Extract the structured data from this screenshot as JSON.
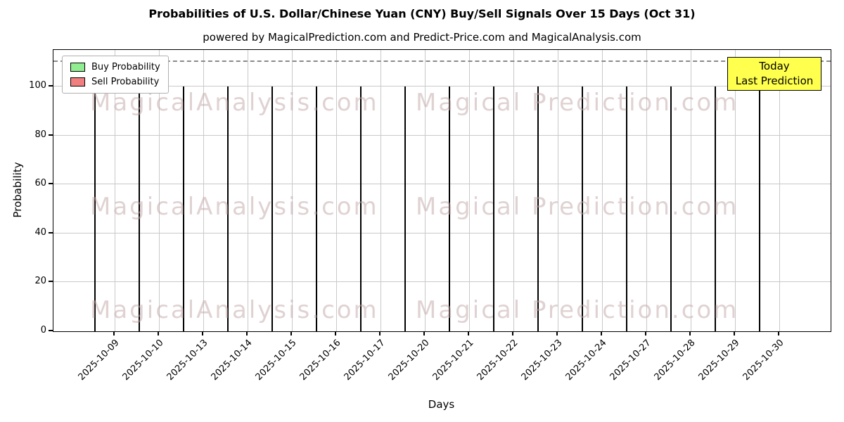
{
  "chart_data": {
    "type": "bar",
    "title": "Probabilities of U.S. Dollar/Chinese Yuan (CNY) Buy/Sell Signals Over 15 Days (Oct 31)",
    "subtitle": "powered by MagicalPrediction.com and Predict-Price.com and MagicalAnalysis.com",
    "xlabel": "Days",
    "ylabel": "Probability",
    "ylim": [
      0,
      115
    ],
    "yticks": [
      0,
      20,
      40,
      60,
      80,
      100
    ],
    "dashed_line_y": 110,
    "grid": true,
    "legend_position": "upper left",
    "categories": [
      "2025-10-09",
      "2025-10-10",
      "2025-10-13",
      "2025-10-14",
      "2025-10-15",
      "2025-10-16",
      "2025-10-17",
      "2025-10-20",
      "2025-10-21",
      "2025-10-22",
      "2025-10-23",
      "2025-10-24",
      "2025-10-27",
      "2025-10-28",
      "2025-10-29",
      "2025-10-30"
    ],
    "series": [
      {
        "name": "Buy Probability",
        "color": "#90ee90",
        "values": [
          100,
          100,
          100,
          100,
          50,
          0,
          49,
          0,
          50,
          49.5,
          50,
          50,
          50,
          100,
          100,
          100
        ]
      },
      {
        "name": "Sell Probability",
        "color": "#f08080",
        "values": [
          0,
          0,
          0,
          0,
          50,
          100,
          51,
          100,
          50,
          50.5,
          50,
          50,
          50,
          0,
          0,
          0
        ]
      }
    ],
    "bar_edge_color": "#000000",
    "last_bar_color": "#008000",
    "annotation": {
      "line1": "Today",
      "line2": "Last Prediction",
      "bg": "#ffff4d"
    },
    "watermarks": {
      "texts": [
        "MagicalAnalysis.com",
        "Magical Prediction.com"
      ],
      "color": "rgba(193,166,166,0.5)"
    }
  }
}
